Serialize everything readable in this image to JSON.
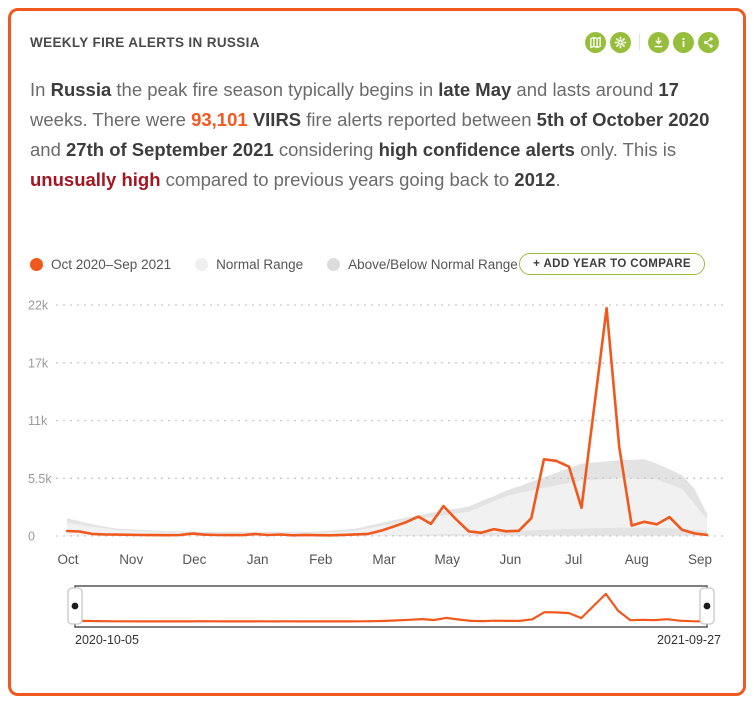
{
  "header": {
    "title": "WEEKLY FIRE ALERTS IN RUSSIA",
    "actions": [
      {
        "label": "Show on map",
        "icon": "map-icon"
      },
      {
        "label": "Settings",
        "icon": "gear-icon"
      },
      {
        "label": "Download",
        "icon": "download-icon"
      },
      {
        "label": "Info",
        "icon": "info-icon"
      },
      {
        "label": "Share",
        "icon": "share-icon"
      }
    ]
  },
  "summary": {
    "segments": [
      {
        "text": "In ",
        "style": "normal"
      },
      {
        "text": "Russia",
        "style": "bold"
      },
      {
        "text": " the peak fire season typically begins in ",
        "style": "normal"
      },
      {
        "text": "late May",
        "style": "bold"
      },
      {
        "text": " and lasts around ",
        "style": "normal"
      },
      {
        "text": "17",
        "style": "bold"
      },
      {
        "text": " weeks. There were ",
        "style": "normal"
      },
      {
        "text": "93,101",
        "style": "orange"
      },
      {
        "text": " ",
        "style": "normal"
      },
      {
        "text": "VIIRS",
        "style": "bold"
      },
      {
        "text": " fire alerts reported between ",
        "style": "normal"
      },
      {
        "text": "5th of October 2020",
        "style": "bold"
      },
      {
        "text": " and ",
        "style": "normal"
      },
      {
        "text": "27th of September 2021",
        "style": "bold"
      },
      {
        "text": " considering ",
        "style": "normal"
      },
      {
        "text": "high confidence alerts",
        "style": "bold"
      },
      {
        "text": " only. This is ",
        "style": "normal"
      },
      {
        "text": "unusually high",
        "style": "red"
      },
      {
        "text": " compared to previous years going back to ",
        "style": "normal"
      },
      {
        "text": "2012",
        "style": "bold"
      },
      {
        "text": ".",
        "style": "normal"
      }
    ]
  },
  "legend": {
    "items": [
      {
        "label": "Oct 2020–Sep 2021",
        "color": "#F0591D"
      },
      {
        "label": "Normal Range",
        "color": "#EFEFEF"
      },
      {
        "label": "Above/Below Normal Range",
        "color": "#DCDCDC"
      }
    ],
    "compare_button": "+ ADD YEAR TO COMPARE"
  },
  "chart_data": {
    "type": "line",
    "title": "Weekly VIIRS fire alerts in Russia",
    "x_tick_labels": [
      "Oct",
      "Nov",
      "Dec",
      "Jan",
      "Feb",
      "Mar",
      "May",
      "Jun",
      "Jul",
      "Aug",
      "Sep"
    ],
    "y_ticks": [
      {
        "label": "0",
        "value": 0
      },
      {
        "label": "5.5k",
        "value": 5500
      },
      {
        "label": "11k",
        "value": 11000
      },
      {
        "label": "17k",
        "value": 16500
      },
      {
        "label": "22k",
        "value": 22000
      }
    ],
    "ylim": [
      0,
      22000
    ],
    "grid": "dotted-horizontal",
    "n_points": 52,
    "series": [
      {
        "name": "Oct 2020–Sep 2021",
        "type": "line",
        "color": "#F0591D",
        "values": [
          480,
          430,
          200,
          150,
          130,
          110,
          95,
          85,
          80,
          95,
          230,
          120,
          95,
          85,
          90,
          190,
          95,
          140,
          70,
          100,
          80,
          70,
          100,
          150,
          200,
          500,
          900,
          1300,
          1850,
          1150,
          2850,
          1600,
          450,
          300,
          650,
          450,
          500,
          1700,
          7300,
          7150,
          6600,
          2700,
          12200,
          21700,
          8500,
          1000,
          1350,
          1100,
          1800,
          600,
          250,
          100
        ]
      },
      {
        "name": "Normal Range",
        "type": "band",
        "color": "#F1F1F1",
        "upper": [
          1300,
          1100,
          900,
          725,
          550,
          500,
          450,
          400,
          350,
          337,
          325,
          312,
          300,
          300,
          300,
          300,
          300,
          300,
          300,
          300,
          300,
          366,
          433,
          500,
          733,
          966,
          1200,
          1400,
          1600,
          1800,
          1966,
          2133,
          2300,
          2800,
          3300,
          3800,
          4066,
          4333,
          4600,
          4833,
          5066,
          5300,
          5366,
          5433,
          5500,
          5466,
          5433,
          5400,
          4950,
          4500,
          3050,
          1600
        ],
        "lower": [
          50,
          50,
          50,
          50,
          50,
          50,
          50,
          50,
          50,
          50,
          50,
          50,
          50,
          50,
          50,
          50,
          50,
          50,
          50,
          50,
          50,
          50,
          50,
          50,
          66,
          83,
          100,
          116,
          133,
          150,
          166,
          183,
          200,
          266,
          333,
          400,
          466,
          533,
          600,
          633,
          666,
          700,
          733,
          766,
          800,
          800,
          800,
          800,
          750,
          700,
          600,
          500
        ]
      },
      {
        "name": "Above/Below Normal Range",
        "type": "band",
        "color": "#E3E3E3",
        "upper": [
          1700,
          1400,
          1100,
          900,
          700,
          637,
          575,
          512,
          450,
          437,
          425,
          412,
          400,
          400,
          400,
          400,
          400,
          400,
          400,
          400,
          400,
          500,
          600,
          700,
          966,
          1233,
          1500,
          1733,
          1966,
          2200,
          2400,
          2600,
          2800,
          3300,
          3800,
          4300,
          4733,
          5166,
          5600,
          6033,
          6466,
          6900,
          7000,
          7100,
          7200,
          7250,
          7300,
          6900,
          6350,
          5800,
          4500,
          2100
        ],
        "lower": [
          30,
          30,
          30,
          30,
          30,
          30,
          30,
          30,
          30,
          30,
          30,
          30,
          30,
          30,
          30,
          30,
          30,
          30,
          30,
          30,
          30,
          30,
          30,
          30,
          30,
          30,
          30,
          30,
          30,
          30,
          30,
          30,
          30,
          30,
          30,
          30,
          30,
          30,
          30,
          30,
          30,
          30,
          30,
          30,
          30,
          30,
          30,
          30,
          30,
          30,
          30,
          30
        ]
      }
    ]
  },
  "timeline": {
    "start_label": "2020-10-05",
    "end_label": "2021-09-27"
  }
}
